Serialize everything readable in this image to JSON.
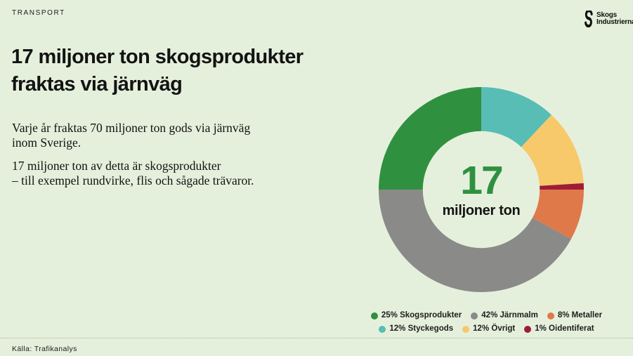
{
  "page": {
    "eyebrow": "TRANSPORT",
    "background": "#e5f0dc"
  },
  "logo": {
    "line1": "Skogs",
    "line2": "Industrierna"
  },
  "title": {
    "line1": "17 miljoner ton skogsprodukter",
    "line2": "fraktas via järnväg"
  },
  "body": {
    "paragraph1": {
      "line1": "Varje år fraktas 70 miljoner ton gods via järnväg",
      "line2": "inom Sverige."
    },
    "paragraph2": {
      "line1": "17 miljoner ton av detta är skogsprodukter",
      "line2": "– till exempel rundvirke, flis och sågade trävaror."
    }
  },
  "chart_data": {
    "type": "pie",
    "subtype": "donut",
    "center_value": "17",
    "center_label": "miljoner ton",
    "start_angle_deg": 0,
    "direction": "clockwise",
    "inner_radius_ratio": 0.57,
    "slices": [
      {
        "name": "Styckegods",
        "value": 12,
        "color": "#58bdb4"
      },
      {
        "name": "Övrigt",
        "value": 12,
        "color": "#f7c96b"
      },
      {
        "name": "Oidentiferat",
        "value": 1,
        "color": "#9e1d37"
      },
      {
        "name": "Metaller",
        "value": 8,
        "color": "#e0794a"
      },
      {
        "name": "Järnmalm",
        "value": 42,
        "color": "#8a8a88"
      },
      {
        "name": "Skogsprodukter",
        "value": 25,
        "color": "#2f9140"
      }
    ],
    "legend_position": "bottom",
    "legend_rows": [
      [
        {
          "label": "25% Skogsprodukter",
          "color": "#2f9140"
        },
        {
          "label": "42% Järnmalm",
          "color": "#8a8a88"
        },
        {
          "label": "8% Metaller",
          "color": "#e0794a"
        }
      ],
      [
        {
          "label": "12% Styckegods",
          "color": "#58bdb4"
        },
        {
          "label": "12% Övrigt",
          "color": "#f7c96b"
        },
        {
          "label": "1% Oidentiferat",
          "color": "#9e1d37"
        }
      ]
    ]
  },
  "footer": {
    "source": "Källa: Trafikanalys"
  },
  "colors": {
    "accent_green": "#2f9140",
    "text": "#151515"
  }
}
